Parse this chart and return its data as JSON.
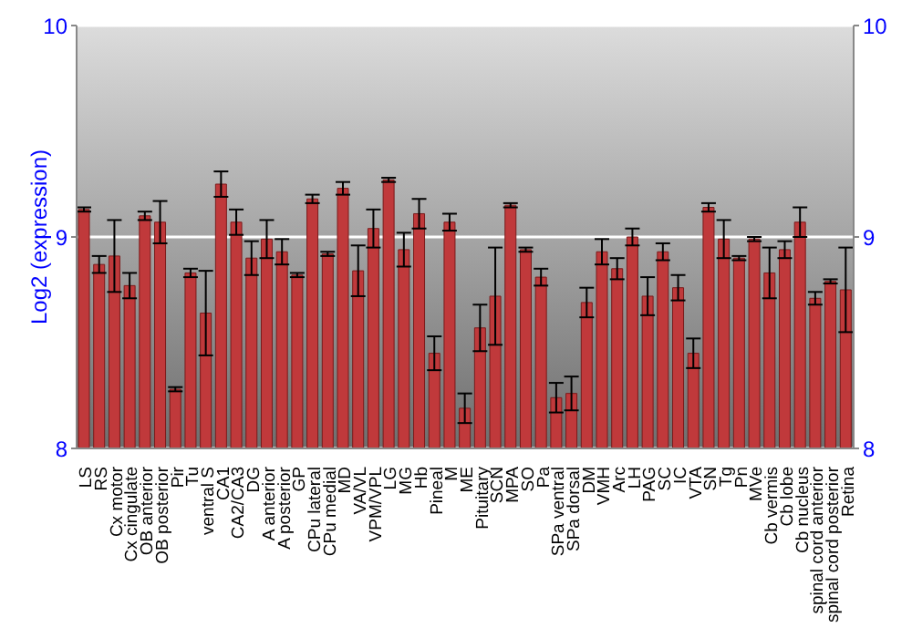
{
  "chart_data": {
    "type": "bar",
    "ylabel": "Log2 (expression)",
    "categories": [
      "LS",
      "RS",
      "Cx motor",
      "Cx cingulate",
      "OB anterior",
      "OB posterior",
      "Pir",
      "Tu",
      "ventral S",
      "CA1",
      "CA2/CA3",
      "DG",
      "A anterior",
      "A posterior",
      "GP",
      "CPu lateral",
      "CPu medial",
      "MD",
      "VA/VL",
      "VPM/VPL",
      "LG",
      "MG",
      "Hb",
      "Pineal",
      "M",
      "ME",
      "Pituitary",
      "SCN",
      "MPA",
      "SO",
      "Pa",
      "SPa ventral",
      "SPa dorsal",
      "DM",
      "VMH",
      "Arc",
      "LH",
      "PAG",
      "SC",
      "IC",
      "VTA",
      "SN",
      "Tg",
      "Pn",
      "MVe",
      "Cb vermis",
      "Cb lobe",
      "Cb nucleus",
      "spinal cord anterior",
      "spinal cord posterior",
      "Retina"
    ],
    "values": [
      9.13,
      8.87,
      8.91,
      8.77,
      9.1,
      9.07,
      8.28,
      8.83,
      8.64,
      9.25,
      9.07,
      8.9,
      8.99,
      8.93,
      8.82,
      9.18,
      8.92,
      9.23,
      8.84,
      9.04,
      9.27,
      8.94,
      9.11,
      8.45,
      9.07,
      8.19,
      8.57,
      8.72,
      9.15,
      8.94,
      8.81,
      8.24,
      8.26,
      8.69,
      8.93,
      8.85,
      9.0,
      8.72,
      8.93,
      8.76,
      8.45,
      9.14,
      8.99,
      8.9,
      8.99,
      8.83,
      8.94,
      9.07,
      8.71,
      8.79,
      8.75
    ],
    "errors": [
      0.01,
      0.04,
      0.17,
      0.06,
      0.02,
      0.1,
      0.01,
      0.02,
      0.2,
      0.06,
      0.06,
      0.08,
      0.09,
      0.06,
      0.01,
      0.02,
      0.01,
      0.03,
      0.12,
      0.09,
      0.01,
      0.08,
      0.07,
      0.08,
      0.04,
      0.07,
      0.11,
      0.23,
      0.01,
      0.01,
      0.04,
      0.07,
      0.08,
      0.07,
      0.06,
      0.05,
      0.04,
      0.09,
      0.04,
      0.06,
      0.07,
      0.02,
      0.09,
      0.01,
      0.01,
      0.12,
      0.04,
      0.07,
      0.03,
      0.01,
      0.2
    ],
    "color": "#c0393b",
    "ylim": [
      8,
      10
    ],
    "yticks": [
      8,
      9,
      10
    ],
    "y2lim": [
      8,
      10
    ],
    "y2ticks": [
      8,
      9,
      10
    ],
    "grid": "y"
  }
}
